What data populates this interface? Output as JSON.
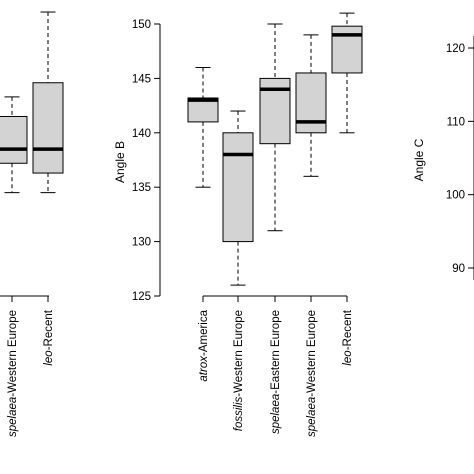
{
  "chart_data": [
    {
      "type": "box",
      "ylabel": "",
      "yticks": [],
      "ylim": [
        125,
        152
      ],
      "categories": [
        {
          "italic": "spelaea",
          "rest": "-Western Europe"
        },
        {
          "italic": "leo",
          "rest": "-Recent"
        }
      ],
      "boxes": [
        {
          "min": 134.5,
          "q1": 137.2,
          "median": 138.5,
          "q3": 141.5,
          "max": 143.3
        },
        {
          "min": 134.5,
          "q1": 136.3,
          "median": 138.5,
          "q3": 144.6,
          "max": 151.1
        }
      ]
    },
    {
      "type": "box",
      "ylabel": "Angle B",
      "yticks": [
        125,
        130,
        135,
        140,
        145,
        150
      ],
      "ylim": [
        125,
        152
      ],
      "categories": [
        {
          "italic": "atrox",
          "rest": "-America"
        },
        {
          "italic": "fossilis",
          "rest": "-Western Europe"
        },
        {
          "italic": "spelaea",
          "rest": "-Eastern Europe"
        },
        {
          "italic": "spelaea",
          "rest": "-Western Europe"
        },
        {
          "italic": "leo",
          "rest": "-Recent"
        }
      ],
      "boxes": [
        {
          "min": 135,
          "q1": 141,
          "median": 143,
          "q3": 143.2,
          "max": 146
        },
        {
          "min": 126,
          "q1": 130,
          "median": 138,
          "q3": 140,
          "max": 142
        },
        {
          "min": 131,
          "q1": 139,
          "median": 144,
          "q3": 145,
          "max": 150
        },
        {
          "min": 136,
          "q1": 140,
          "median": 141,
          "q3": 145.5,
          "max": 149
        },
        {
          "min": 140,
          "q1": 145.5,
          "median": 149,
          "q3": 149.8,
          "max": 151
        }
      ]
    },
    {
      "type": "box",
      "ylabel": "Angle C",
      "yticks": [
        90,
        100,
        110,
        120
      ],
      "categories": [],
      "boxes": []
    }
  ]
}
